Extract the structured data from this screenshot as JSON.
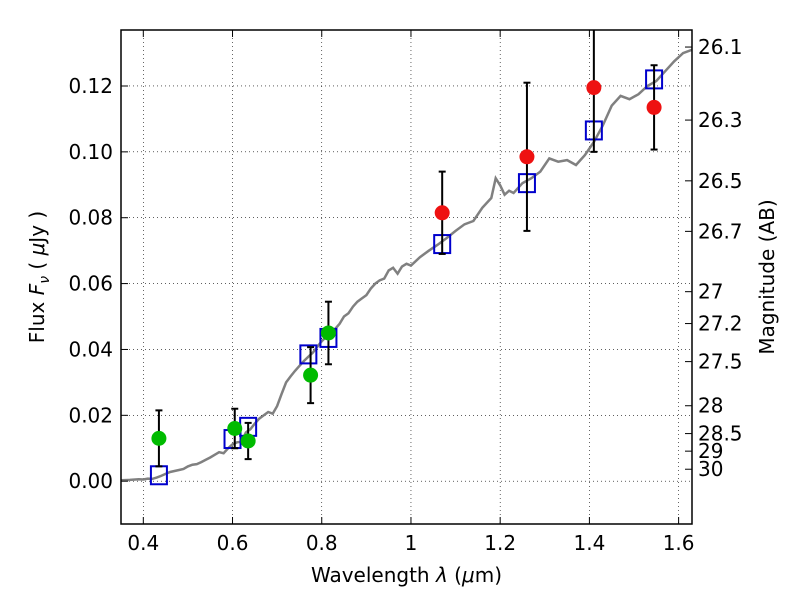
{
  "chart_data": {
    "type": "scatter",
    "title": "",
    "xlabel": {
      "prefix": "Wavelength  ",
      "symbol": "λ",
      "open": " (",
      "unit_mu": "μ",
      "unit_rest": "m)"
    },
    "ylabel": {
      "prefix": "Flux  ",
      "symbol": "F",
      "subscript": "ν",
      "open": "  ( ",
      "unit_mu": "μ",
      "unit_rest": "Jy )"
    },
    "y2label": "Magnitude (AB)",
    "xlim": [
      0.35,
      1.63
    ],
    "ylim": [
      -0.013,
      0.137
    ],
    "grid": true,
    "x_ticks": [
      {
        "value": 0.4,
        "label": "0.4"
      },
      {
        "value": 0.6,
        "label": "0.6"
      },
      {
        "value": 0.8,
        "label": "0.8"
      },
      {
        "value": 1.0,
        "label": "1"
      },
      {
        "value": 1.2,
        "label": "1.2"
      },
      {
        "value": 1.4,
        "label": "1.4"
      },
      {
        "value": 1.6,
        "label": "1.6"
      }
    ],
    "y_ticks": [
      {
        "value": 0.0,
        "label": "0.00"
      },
      {
        "value": 0.02,
        "label": "0.02"
      },
      {
        "value": 0.04,
        "label": "0.04"
      },
      {
        "value": 0.06,
        "label": "0.06"
      },
      {
        "value": 0.08,
        "label": "0.08"
      },
      {
        "value": 0.1,
        "label": "0.10"
      },
      {
        "value": 0.12,
        "label": "0.12"
      }
    ],
    "y2_ticks": [
      {
        "mag": 26.1,
        "label": "26.1"
      },
      {
        "mag": 26.3,
        "label": "26.3"
      },
      {
        "mag": 26.5,
        "label": "26.5"
      },
      {
        "mag": 26.7,
        "label": "26.7"
      },
      {
        "mag": 27,
        "label": "27"
      },
      {
        "mag": 27.2,
        "label": "27.2"
      },
      {
        "mag": 27.5,
        "label": "27.5"
      },
      {
        "mag": 28,
        "label": "28"
      },
      {
        "mag": 28.5,
        "label": "28.5"
      },
      {
        "mag": 29,
        "label": "29"
      },
      {
        "mag": 30,
        "label": "30"
      }
    ],
    "series": [
      {
        "kind": "line",
        "color": "#808080",
        "points": [
          [
            0.35,
            0.0003
          ],
          [
            0.37,
            0.0004
          ],
          [
            0.39,
            0.0006
          ],
          [
            0.4,
            0.0005
          ],
          [
            0.41,
            0.0008
          ],
          [
            0.42,
            0.0007
          ],
          [
            0.43,
            0.0011
          ],
          [
            0.44,
            0.0016
          ],
          [
            0.45,
            0.0022
          ],
          [
            0.46,
            0.0028
          ],
          [
            0.47,
            0.0031
          ],
          [
            0.48,
            0.0034
          ],
          [
            0.49,
            0.0037
          ],
          [
            0.5,
            0.0045
          ],
          [
            0.51,
            0.005
          ],
          [
            0.52,
            0.0052
          ],
          [
            0.53,
            0.0058
          ],
          [
            0.54,
            0.0065
          ],
          [
            0.55,
            0.0072
          ],
          [
            0.56,
            0.008
          ],
          [
            0.57,
            0.0088
          ],
          [
            0.58,
            0.0085
          ],
          [
            0.59,
            0.01
          ],
          [
            0.6,
            0.0112
          ],
          [
            0.61,
            0.0118
          ],
          [
            0.62,
            0.012
          ],
          [
            0.63,
            0.0148
          ],
          [
            0.64,
            0.0158
          ],
          [
            0.65,
            0.0175
          ],
          [
            0.66,
            0.019
          ],
          [
            0.67,
            0.02
          ],
          [
            0.68,
            0.021
          ],
          [
            0.69,
            0.0205
          ],
          [
            0.7,
            0.0228
          ],
          [
            0.71,
            0.0265
          ],
          [
            0.72,
            0.03
          ],
          [
            0.73,
            0.0318
          ],
          [
            0.74,
            0.0335
          ],
          [
            0.75,
            0.035
          ],
          [
            0.76,
            0.0365
          ],
          [
            0.77,
            0.0378
          ],
          [
            0.78,
            0.039
          ],
          [
            0.79,
            0.0408
          ],
          [
            0.8,
            0.0425
          ],
          [
            0.81,
            0.0438
          ],
          [
            0.82,
            0.045
          ],
          [
            0.83,
            0.0462
          ],
          [
            0.84,
            0.0478
          ],
          [
            0.85,
            0.05
          ],
          [
            0.86,
            0.051
          ],
          [
            0.87,
            0.053
          ],
          [
            0.88,
            0.0545
          ],
          [
            0.89,
            0.0555
          ],
          [
            0.9,
            0.0565
          ],
          [
            0.91,
            0.0585
          ],
          [
            0.92,
            0.06
          ],
          [
            0.93,
            0.061
          ],
          [
            0.94,
            0.0615
          ],
          [
            0.95,
            0.064
          ],
          [
            0.96,
            0.0648
          ],
          [
            0.97,
            0.063
          ],
          [
            0.98,
            0.0652
          ],
          [
            0.99,
            0.066
          ],
          [
            1.0,
            0.0655
          ],
          [
            1.02,
            0.068
          ],
          [
            1.04,
            0.07
          ],
          [
            1.06,
            0.0718
          ],
          [
            1.08,
            0.0738
          ],
          [
            1.1,
            0.076
          ],
          [
            1.12,
            0.078
          ],
          [
            1.14,
            0.079
          ],
          [
            1.16,
            0.083
          ],
          [
            1.18,
            0.086
          ],
          [
            1.19,
            0.092
          ],
          [
            1.2,
            0.0898
          ],
          [
            1.21,
            0.087
          ],
          [
            1.22,
            0.0882
          ],
          [
            1.23,
            0.0875
          ],
          [
            1.25,
            0.0905
          ],
          [
            1.27,
            0.092
          ],
          [
            1.29,
            0.094
          ],
          [
            1.31,
            0.098
          ],
          [
            1.33,
            0.097
          ],
          [
            1.35,
            0.0975
          ],
          [
            1.37,
            0.096
          ],
          [
            1.39,
            0.099
          ],
          [
            1.41,
            0.103
          ],
          [
            1.43,
            0.108
          ],
          [
            1.45,
            0.114
          ],
          [
            1.47,
            0.117
          ],
          [
            1.49,
            0.116
          ],
          [
            1.51,
            0.1175
          ],
          [
            1.53,
            0.12
          ],
          [
            1.55,
            0.1215
          ],
          [
            1.57,
            0.1245
          ],
          [
            1.59,
            0.1275
          ],
          [
            1.61,
            0.13
          ],
          [
            1.63,
            0.131
          ]
        ]
      },
      {
        "kind": "model-squares",
        "color": "#0000cc",
        "points": [
          [
            0.435,
            0.0018
          ],
          [
            0.6,
            0.0128
          ],
          [
            0.635,
            0.0165
          ],
          [
            0.77,
            0.0385
          ],
          [
            0.815,
            0.0435
          ],
          [
            1.07,
            0.072
          ],
          [
            1.26,
            0.0905
          ],
          [
            1.41,
            0.1065
          ],
          [
            1.545,
            0.122
          ]
        ]
      },
      {
        "kind": "points-errorbars",
        "color": "#00bb00",
        "points": [
          {
            "x": 0.435,
            "y": 0.013,
            "err": 0.0085
          },
          {
            "x": 0.605,
            "y": 0.016,
            "err": 0.006
          },
          {
            "x": 0.635,
            "y": 0.0122,
            "err": 0.0055
          },
          {
            "x": 0.775,
            "y": 0.0322,
            "err": 0.0085
          },
          {
            "x": 0.815,
            "y": 0.045,
            "err": 0.0095
          }
        ]
      },
      {
        "kind": "points-errorbars",
        "color": "#ee1111",
        "points": [
          {
            "x": 1.07,
            "y": 0.0815,
            "err": 0.0125
          },
          {
            "x": 1.26,
            "y": 0.0985,
            "err": 0.0225
          },
          {
            "x": 1.41,
            "y": 0.1195,
            "err": 0.0195
          },
          {
            "x": 1.545,
            "y": 0.1135,
            "err": 0.0128
          }
        ]
      }
    ]
  }
}
